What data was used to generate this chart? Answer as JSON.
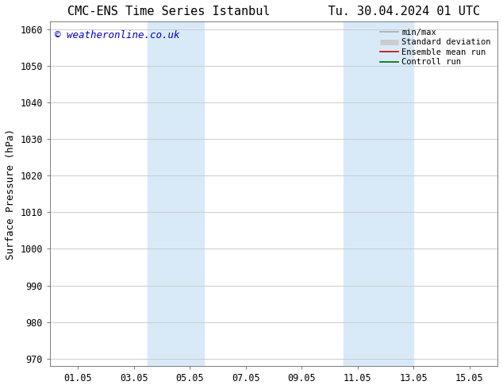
{
  "title": "CMC-ENS Time Series Istanbul",
  "title2": "Tu. 30.04.2024 01 UTC",
  "ylabel": "Surface Pressure (hPa)",
  "ylim": [
    968,
    1062
  ],
  "yticks": [
    970,
    980,
    990,
    1000,
    1010,
    1020,
    1030,
    1040,
    1050,
    1060
  ],
  "xtick_labels": [
    "01.05",
    "03.05",
    "05.05",
    "07.05",
    "09.05",
    "11.05",
    "13.05",
    "15.05"
  ],
  "xtick_positions": [
    1,
    3,
    5,
    7,
    9,
    11,
    13,
    15
  ],
  "xlim": [
    0,
    16
  ],
  "shaded_regions": [
    {
      "x_start": 3.5,
      "x_end": 5.5
    },
    {
      "x_start": 10.5,
      "x_end": 13.0
    }
  ],
  "shaded_color": "#d8eaf8",
  "watermark_text": "© weatheronline.co.uk",
  "watermark_color": "#0000cc",
  "legend_entries": [
    {
      "label": "min/max",
      "color": "#aaaaaa",
      "lw": 1.2
    },
    {
      "label": "Standard deviation",
      "color": "#cccccc",
      "lw": 5
    },
    {
      "label": "Ensemble mean run",
      "color": "#cc0000",
      "lw": 1.2
    },
    {
      "label": "Controll run",
      "color": "#006600",
      "lw": 1.2
    }
  ],
  "bg_color": "#ffffff",
  "grid_color": "#cccccc",
  "title_fontsize": 11,
  "tick_fontsize": 8.5,
  "ylabel_fontsize": 9,
  "legend_fontsize": 7.5,
  "watermark_fontsize": 9
}
